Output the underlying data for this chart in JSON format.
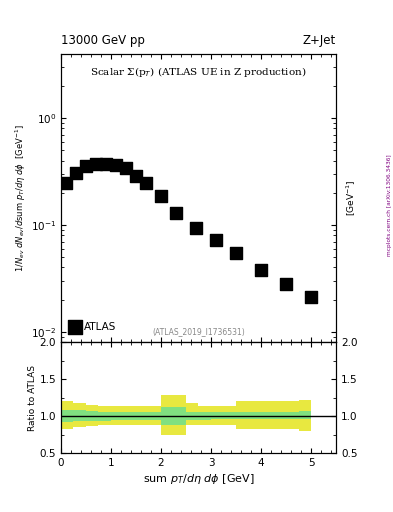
{
  "title_left": "13000 GeV pp",
  "title_right": "Z+Jet",
  "plot_title": "Scalar Σ(p$_T$) (ATLAS UE in Z production)",
  "watermark": "(ATLAS_2019_I1736531)",
  "side_text": "mcplots.cern.ch [arXiv:1306.3436]",
  "data_x": [
    0.1,
    0.3,
    0.5,
    0.7,
    0.9,
    1.1,
    1.3,
    1.5,
    1.7,
    2.0,
    2.3,
    2.7,
    3.1,
    3.5,
    4.0,
    4.5,
    5.0
  ],
  "data_y": [
    0.245,
    0.305,
    0.355,
    0.375,
    0.375,
    0.365,
    0.34,
    0.29,
    0.245,
    0.185,
    0.13,
    0.093,
    0.072,
    0.055,
    0.038,
    0.028,
    0.021
  ],
  "ratio_bins": [
    0.0,
    0.25,
    0.5,
    0.75,
    1.0,
    1.25,
    1.5,
    1.75,
    2.0,
    2.25,
    2.5,
    2.75,
    3.0,
    3.25,
    3.5,
    3.75,
    4.0,
    4.25,
    4.5,
    4.75,
    5.0
  ],
  "green_lo": [
    0.92,
    0.93,
    0.93,
    0.94,
    0.95,
    0.95,
    0.95,
    0.95,
    0.88,
    0.88,
    0.95,
    0.95,
    0.96,
    0.96,
    0.96,
    0.96,
    0.96,
    0.96,
    0.96,
    0.96
  ],
  "green_hi": [
    1.08,
    1.08,
    1.07,
    1.06,
    1.05,
    1.05,
    1.05,
    1.05,
    1.12,
    1.12,
    1.06,
    1.05,
    1.05,
    1.05,
    1.05,
    1.05,
    1.05,
    1.06,
    1.06,
    1.07
  ],
  "yellow_lo": [
    0.82,
    0.85,
    0.87,
    0.88,
    0.88,
    0.88,
    0.88,
    0.88,
    0.75,
    0.75,
    0.88,
    0.88,
    0.88,
    0.88,
    0.82,
    0.82,
    0.82,
    0.82,
    0.82,
    0.8
  ],
  "yellow_hi": [
    1.2,
    1.18,
    1.15,
    1.14,
    1.14,
    1.14,
    1.14,
    1.14,
    1.28,
    1.28,
    1.18,
    1.14,
    1.14,
    1.14,
    1.2,
    1.2,
    1.2,
    1.2,
    1.2,
    1.22
  ],
  "xlim": [
    0,
    5.5
  ],
  "ylim_main": [
    0.008,
    4.0
  ],
  "ylim_ratio": [
    0.5,
    2.0
  ],
  "legend_label": "ATLAS",
  "marker_color": "black",
  "marker_style": "s",
  "marker_size": 4,
  "green_color": "#80e080",
  "yellow_color": "#e8e840",
  "bg_color": "#ffffff"
}
